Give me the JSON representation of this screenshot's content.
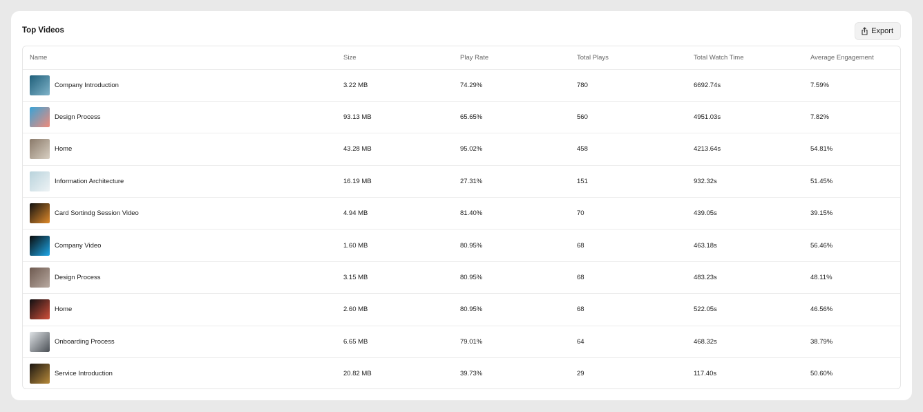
{
  "card": {
    "title": "Top Videos",
    "export_label": "Export",
    "export_icon": "share-upload-icon"
  },
  "table": {
    "headers": {
      "name": "Name",
      "size": "Size",
      "play_rate": "Play Rate",
      "total_plays": "Total Plays",
      "total_watch_time": "Total Watch Time",
      "average_engagement": "Average Engagement"
    },
    "rows": [
      {
        "name": "Company Introduction",
        "size": "3.22 MB",
        "play_rate": "74.29%",
        "total_plays": "780",
        "total_watch_time": "6692.74s",
        "average_engagement": "7.59%",
        "thumb_colors": [
          "#1f5f7a",
          "#7fb3c9"
        ]
      },
      {
        "name": "Design Process",
        "size": "93.13 MB",
        "play_rate": "65.65%",
        "total_plays": "560",
        "total_watch_time": "4951.03s",
        "average_engagement": "7.82%",
        "thumb_colors": [
          "#3aa3d6",
          "#f08a7a"
        ]
      },
      {
        "name": "Home",
        "size": "43.28 MB",
        "play_rate": "95.02%",
        "total_plays": "458",
        "total_watch_time": "4213.64s",
        "average_engagement": "54.81%",
        "thumb_colors": [
          "#8a7a6a",
          "#d8cfc2"
        ]
      },
      {
        "name": "Information Architecture",
        "size": "16.19 MB",
        "play_rate": "27.31%",
        "total_plays": "151",
        "total_watch_time": "932.32s",
        "average_engagement": "51.45%",
        "thumb_colors": [
          "#b9d3dc",
          "#eef3f5"
        ]
      },
      {
        "name": "Card Sortindg Session Video",
        "size": "4.94 MB",
        "play_rate": "81.40%",
        "total_plays": "70",
        "total_watch_time": "439.05s",
        "average_engagement": "39.15%",
        "thumb_colors": [
          "#111111",
          "#e08a2a"
        ]
      },
      {
        "name": "Company Video",
        "size": "1.60 MB",
        "play_rate": "80.95%",
        "total_plays": "68",
        "total_watch_time": "463.18s",
        "average_engagement": "56.46%",
        "thumb_colors": [
          "#0a0a0a",
          "#1ea7e8"
        ]
      },
      {
        "name": "Design Process",
        "size": "3.15 MB",
        "play_rate": "80.95%",
        "total_plays": "68",
        "total_watch_time": "483.23s",
        "average_engagement": "48.11%",
        "thumb_colors": [
          "#6e5a50",
          "#b8a9a0"
        ]
      },
      {
        "name": "Home",
        "size": "2.60 MB",
        "play_rate": "80.95%",
        "total_plays": "68",
        "total_watch_time": "522.05s",
        "average_engagement": "46.56%",
        "thumb_colors": [
          "#0f0f12",
          "#d2503a"
        ]
      },
      {
        "name": "Onboarding Process",
        "size": "6.65 MB",
        "play_rate": "79.01%",
        "total_plays": "64",
        "total_watch_time": "468.32s",
        "average_engagement": "38.79%",
        "thumb_colors": [
          "#dfe3e6",
          "#4a4f55"
        ]
      },
      {
        "name": "Service Introduction",
        "size": "20.82 MB",
        "play_rate": "39.73%",
        "total_plays": "29",
        "total_watch_time": "117.40s",
        "average_engagement": "50.60%",
        "thumb_colors": [
          "#1a1612",
          "#b88a3a"
        ]
      }
    ]
  }
}
